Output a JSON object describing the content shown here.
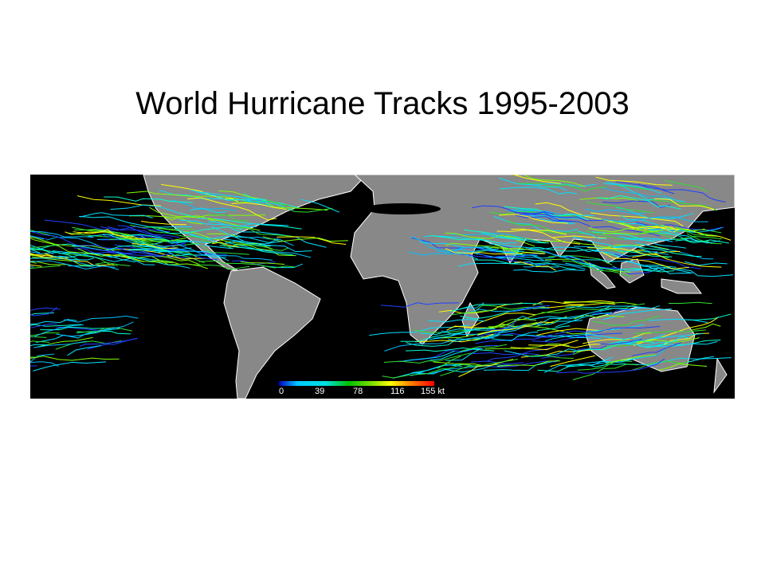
{
  "title": "World Hurricane Tracks 1995-2003",
  "legend": {
    "labels": [
      "0",
      "39",
      "78",
      "116",
      "155 kt"
    ]
  }
}
